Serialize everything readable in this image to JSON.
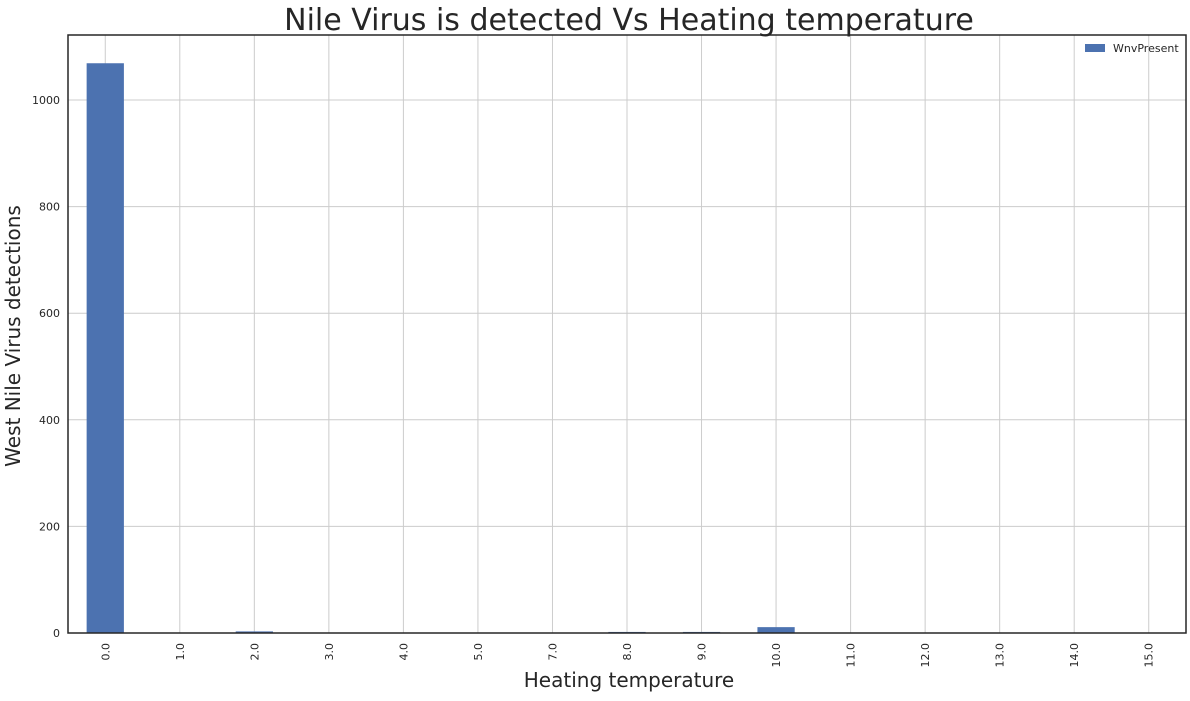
{
  "chart_data": {
    "type": "bar",
    "title": "Nile Virus is detected Vs Heating temperature",
    "xlabel": "Heating temperature",
    "ylabel": "West Nile Virus detections",
    "categories": [
      "0.0",
      "1.0",
      "2.0",
      "3.0",
      "4.0",
      "5.0",
      "7.0",
      "8.0",
      "9.0",
      "10.0",
      "11.0",
      "12.0",
      "13.0",
      "14.0",
      "15.0"
    ],
    "series": [
      {
        "name": "WnvPresent",
        "values": [
          1069,
          0,
          3,
          0,
          0,
          0,
          0,
          2,
          2,
          11,
          0,
          0,
          0,
          0,
          0
        ],
        "color": "#4c72b0"
      }
    ],
    "ylim": [
      0,
      1122
    ],
    "yticks": [
      0,
      200,
      400,
      600,
      800,
      1000
    ],
    "grid": true,
    "legend_position": "top-right",
    "grid_color": "#cccccc",
    "axis_color": "#262626"
  }
}
